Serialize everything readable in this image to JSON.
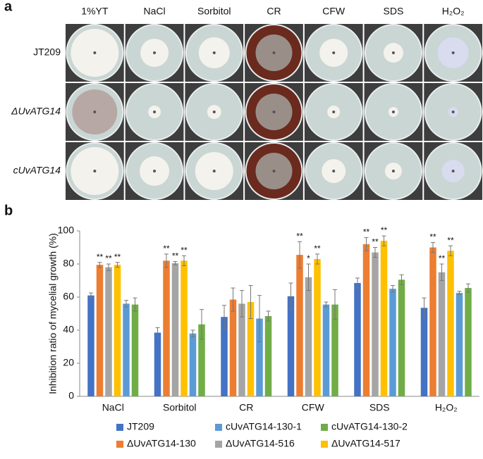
{
  "panel_a": {
    "label": "a",
    "columns": [
      "1%YT",
      "NaCl",
      "Sorbitol",
      "CR",
      "CFW",
      "SDS",
      "H₂O₂"
    ],
    "rows": [
      "JT209",
      "ΔUvATG14",
      "cUvATG14"
    ]
  },
  "chart_data": {
    "type": "bar",
    "panel_label": "b",
    "y_label": "Inhibition ratio of mycelial growth (%)",
    "categories": [
      "NaCl",
      "Sorbitol",
      "CR",
      "CFW",
      "SDS",
      "H₂O₂"
    ],
    "ylim": [
      0,
      100
    ],
    "yticks": [
      0,
      20,
      40,
      60,
      80,
      100
    ],
    "series": [
      {
        "name": "JT209",
        "color": "#4472c4",
        "values": [
          61,
          38.5,
          48,
          60.5,
          68.5,
          53.5
        ],
        "errors": [
          1.5,
          3,
          7,
          8,
          3,
          6
        ],
        "significance": [
          null,
          null,
          null,
          null,
          null,
          null
        ]
      },
      {
        "name": "ΔUvATG14-130",
        "color": "#ed7d31",
        "values": [
          79.5,
          82,
          58.5,
          85.5,
          92,
          90
        ],
        "errors": [
          1.5,
          4,
          7,
          8,
          4,
          3
        ],
        "significance": [
          "**",
          "**",
          null,
          "**",
          "**",
          "**"
        ]
      },
      {
        "name": "ΔUvATG14-516",
        "color": "#a5a5a5",
        "values": [
          78,
          80.5,
          56,
          72,
          87,
          75
        ],
        "errors": [
          2,
          1,
          8,
          8,
          3,
          5
        ],
        "significance": [
          "**",
          "**",
          null,
          "*",
          "**",
          "**"
        ]
      },
      {
        "name": "ΔUvATG14-517",
        "color": "#ffc000",
        "values": [
          79.5,
          82,
          57,
          83,
          94,
          88
        ],
        "errors": [
          1.5,
          3,
          10,
          3,
          3,
          3
        ],
        "significance": [
          "**",
          "**",
          null,
          "**",
          "**",
          "**"
        ]
      },
      {
        "name": "cUvATG14-130-1",
        "color": "#5b9bd5",
        "values": [
          56,
          38,
          47,
          55.5,
          65,
          62.5
        ],
        "errors": [
          2,
          2,
          14,
          1.5,
          2,
          1
        ],
        "significance": [
          null,
          null,
          null,
          null,
          null,
          null
        ]
      },
      {
        "name": "cUvATG14-130-2",
        "color": "#70ad47",
        "values": [
          55.5,
          43.5,
          48.5,
          55.5,
          70.5,
          65.5
        ],
        "errors": [
          4,
          9,
          3,
          9,
          3,
          2.5
        ],
        "significance": [
          null,
          null,
          null,
          null,
          null,
          null
        ]
      }
    ]
  }
}
